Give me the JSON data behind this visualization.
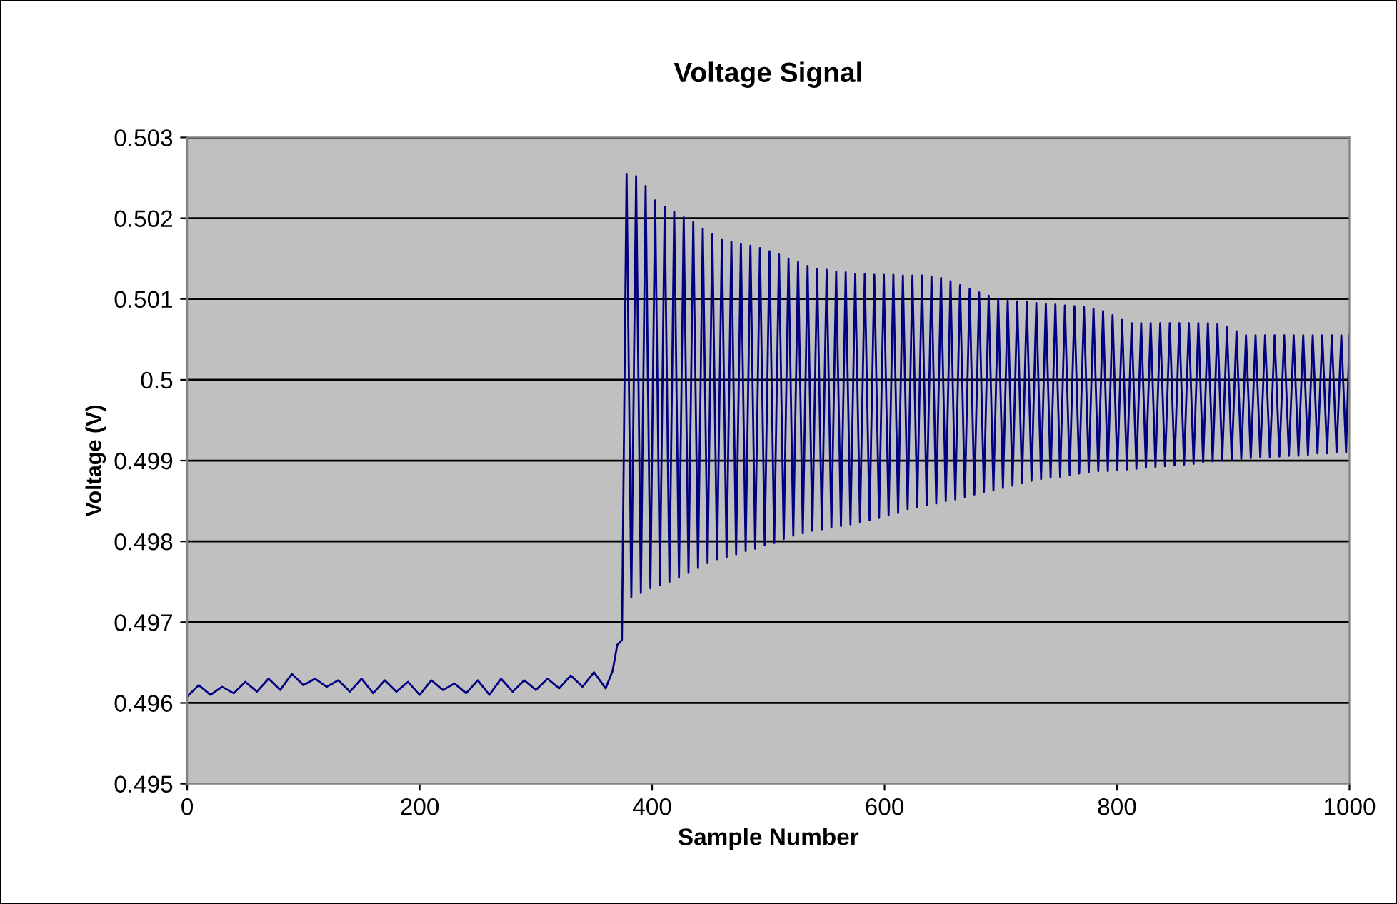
{
  "chart_data": {
    "type": "line",
    "title": "Voltage Signal",
    "xlabel": "Sample Number",
    "ylabel": "Voltage (V)",
    "xlim": [
      0,
      1000
    ],
    "xticks": [
      0,
      200,
      400,
      600,
      800,
      1000
    ],
    "ylim": [
      0.495,
      0.503
    ],
    "yticks": [
      0.495,
      0.496,
      0.497,
      0.498,
      0.499,
      0.5,
      0.501,
      0.502,
      0.503
    ],
    "grid": "y",
    "legend": false,
    "marker": "none",
    "line_style": "solid",
    "series": [
      {
        "color": "#000080",
        "x": [
          0,
          10,
          20,
          30,
          40,
          50,
          60,
          70,
          80,
          90,
          100,
          110,
          120,
          130,
          140,
          150,
          160,
          170,
          180,
          190,
          200,
          210,
          220,
          230,
          240,
          250,
          260,
          270,
          280,
          290,
          300,
          310,
          320,
          330,
          340,
          350,
          360,
          366,
          370,
          374,
          378.0,
          382.1,
          386.2,
          390.3,
          394.4,
          398.5,
          402.6,
          406.7,
          410.8,
          414.9,
          419.0,
          423.1,
          427.2,
          431.3,
          435.4,
          439.5,
          443.6,
          447.7,
          451.8,
          455.9,
          460.0,
          464.1,
          468.2,
          472.3,
          476.4,
          480.5,
          484.6,
          488.7,
          492.8,
          496.9,
          501.0,
          505.1,
          509.2,
          513.3,
          517.4,
          521.5,
          525.6,
          529.7,
          533.8,
          537.9,
          542.0,
          546.1,
          550.2,
          554.3,
          558.4,
          562.5,
          566.6,
          570.7,
          574.8,
          578.9,
          583.0,
          587.1,
          591.2,
          595.3,
          599.4,
          603.5,
          607.6,
          611.7,
          615.8,
          619.9,
          624.0,
          628.1,
          632.2,
          636.3,
          640.4,
          644.5,
          648.6,
          652.7,
          656.8,
          660.9,
          665.0,
          669.1,
          673.2,
          677.3,
          681.4,
          685.5,
          689.6,
          693.7,
          697.8,
          701.9,
          706.0,
          710.1,
          714.2,
          718.3,
          722.4,
          726.5,
          730.6,
          734.7,
          738.8,
          742.9,
          747.0,
          751.1,
          755.2,
          759.3,
          763.4,
          767.5,
          771.6,
          775.7,
          779.8,
          783.9,
          788.0,
          792.1,
          796.2,
          800.3,
          804.4,
          808.5,
          812.6,
          816.7,
          820.8,
          824.9,
          829.0,
          833.1,
          837.2,
          841.3,
          845.4,
          849.5,
          853.6,
          857.7,
          861.8,
          865.9,
          870.0,
          874.1,
          878.2,
          882.3,
          886.4,
          890.5,
          894.6,
          898.7,
          902.8,
          906.9,
          911.0,
          915.1,
          919.2,
          923.3,
          927.4,
          931.5,
          935.6,
          939.7,
          943.8,
          947.9,
          952.0,
          956.1,
          960.2,
          964.3,
          968.4,
          972.5,
          976.6,
          980.7,
          984.8,
          988.9,
          993.0,
          997.1,
          1000
        ],
        "values": [
          0.49608,
          0.49622,
          0.4961,
          0.4962,
          0.49612,
          0.49626,
          0.49614,
          0.4963,
          0.49616,
          0.49636,
          0.49622,
          0.4963,
          0.4962,
          0.49628,
          0.49614,
          0.4963,
          0.49612,
          0.49628,
          0.49614,
          0.49626,
          0.4961,
          0.49628,
          0.49616,
          0.49624,
          0.49612,
          0.49628,
          0.4961,
          0.4963,
          0.49614,
          0.49628,
          0.49616,
          0.4963,
          0.49618,
          0.49634,
          0.4962,
          0.49638,
          0.49618,
          0.4964,
          0.49672,
          0.49678,
          0.50255,
          0.49731,
          0.50252,
          0.49736,
          0.5024,
          0.49742,
          0.50222,
          0.49746,
          0.50214,
          0.4975,
          0.50208,
          0.49755,
          0.50201,
          0.49761,
          0.50195,
          0.49767,
          0.50187,
          0.49773,
          0.5018,
          0.49778,
          0.50173,
          0.4978,
          0.50171,
          0.49784,
          0.50168,
          0.49788,
          0.50166,
          0.49791,
          0.50163,
          0.49795,
          0.50159,
          0.49798,
          0.50155,
          0.49803,
          0.5015,
          0.49807,
          0.50146,
          0.4981,
          0.50141,
          0.49813,
          0.50137,
          0.49815,
          0.50136,
          0.49817,
          0.50134,
          0.49819,
          0.50133,
          0.49821,
          0.50131,
          0.49824,
          0.50131,
          0.49826,
          0.5013,
          0.49829,
          0.5013,
          0.49832,
          0.5013,
          0.49835,
          0.50129,
          0.4984,
          0.50129,
          0.49842,
          0.50129,
          0.49845,
          0.50128,
          0.49847,
          0.50126,
          0.4985,
          0.50122,
          0.49852,
          0.50117,
          0.49855,
          0.50112,
          0.49858,
          0.50108,
          0.49861,
          0.50104,
          0.49863,
          0.501,
          0.49866,
          0.50098,
          0.49869,
          0.50097,
          0.49872,
          0.50096,
          0.49875,
          0.50095,
          0.49877,
          0.50094,
          0.49879,
          0.50093,
          0.4988,
          0.50092,
          0.49882,
          0.50091,
          0.49884,
          0.5009,
          0.49886,
          0.50088,
          0.49887,
          0.50085,
          0.49887,
          0.5008,
          0.49888,
          0.50074,
          0.49889,
          0.5007,
          0.4989,
          0.5007,
          0.49891,
          0.5007,
          0.49892,
          0.5007,
          0.49893,
          0.5007,
          0.49894,
          0.5007,
          0.49895,
          0.5007,
          0.49896,
          0.5007,
          0.49898,
          0.5007,
          0.49899,
          0.50069,
          0.499,
          0.50065,
          0.49901,
          0.5006,
          0.49902,
          0.50055,
          0.49903,
          0.50055,
          0.49904,
          0.50055,
          0.49904,
          0.50055,
          0.49905,
          0.50055,
          0.49906,
          0.50055,
          0.49906,
          0.50055,
          0.49907,
          0.50055,
          0.49909,
          0.50055,
          0.49909,
          0.50055,
          0.4991,
          0.50055,
          0.4991,
          0.50055
        ]
      }
    ]
  }
}
